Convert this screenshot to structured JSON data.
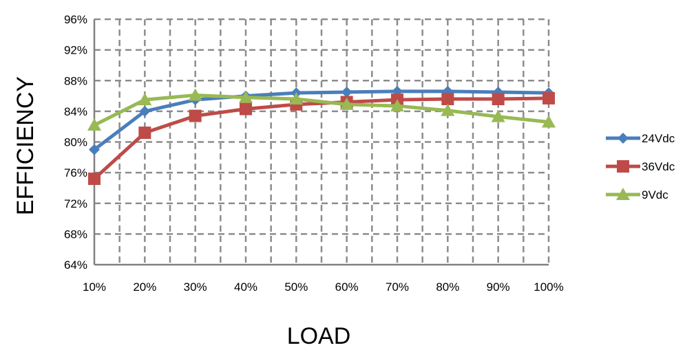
{
  "chart_data": {
    "type": "line",
    "title": "",
    "xlabel": "LOAD",
    "ylabel": "EFFICIENCY",
    "categories": [
      "10%",
      "20%",
      "30%",
      "40%",
      "50%",
      "60%",
      "70%",
      "80%",
      "90%",
      "100%"
    ],
    "y_ticks": [
      "64%",
      "68%",
      "72%",
      "76%",
      "80%",
      "84%",
      "88%",
      "92%",
      "96%"
    ],
    "ylim": [
      64,
      96
    ],
    "grid": true,
    "legend_position": "right",
    "series": [
      {
        "name": "24Vdc",
        "color": "#4a7ebb",
        "marker": "diamond",
        "values": [
          79.0,
          84.0,
          85.5,
          86.0,
          86.4,
          86.5,
          86.6,
          86.6,
          86.5,
          86.4
        ]
      },
      {
        "name": "36Vdc",
        "color": "#be4b48",
        "marker": "square",
        "values": [
          75.2,
          81.2,
          83.4,
          84.3,
          84.9,
          85.2,
          85.5,
          85.6,
          85.6,
          85.7
        ]
      },
      {
        "name": "9Vdc",
        "color": "#98b954",
        "marker": "triangle",
        "values": [
          82.2,
          85.5,
          86.1,
          85.8,
          85.6,
          84.9,
          84.7,
          84.1,
          83.3,
          82.6
        ]
      }
    ]
  }
}
